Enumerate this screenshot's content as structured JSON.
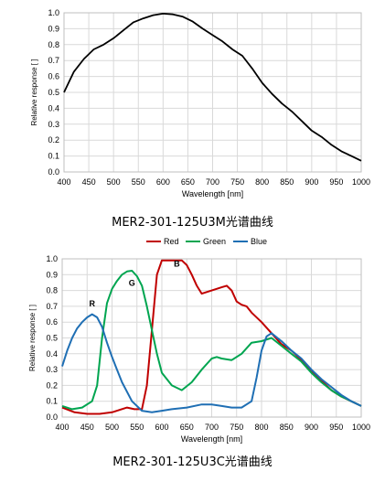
{
  "chart_data": [
    {
      "type": "line",
      "caption": "MER2-301-125U3M光谱曲线",
      "xlabel": "Wavelength [nm]",
      "ylabel": "Relative response [ ]",
      "xlim": [
        400,
        1000
      ],
      "ylim": [
        0,
        1.0
      ],
      "x_ticks": [
        400,
        450,
        500,
        550,
        600,
        650,
        700,
        750,
        800,
        850,
        900,
        950,
        1000
      ],
      "y_ticks": [
        "0.0",
        "0.1",
        "0.2",
        "0.3",
        "0.4",
        "0.5",
        "0.6",
        "0.7",
        "0.8",
        "0.9",
        "1.0"
      ],
      "grid": true,
      "series": [
        {
          "color": "#000000",
          "x": [
            400,
            420,
            440,
            460,
            480,
            500,
            520,
            540,
            560,
            580,
            600,
            620,
            640,
            660,
            680,
            700,
            720,
            740,
            760,
            780,
            800,
            820,
            840,
            860,
            880,
            900,
            920,
            940,
            960,
            980,
            1000
          ],
          "y": [
            0.5,
            0.63,
            0.71,
            0.77,
            0.8,
            0.84,
            0.89,
            0.94,
            0.965,
            0.985,
            0.995,
            0.99,
            0.975,
            0.945,
            0.9,
            0.86,
            0.82,
            0.77,
            0.73,
            0.65,
            0.56,
            0.49,
            0.43,
            0.38,
            0.32,
            0.26,
            0.22,
            0.17,
            0.13,
            0.1,
            0.07
          ]
        }
      ]
    },
    {
      "type": "line",
      "caption": "MER2-301-125U3C光谱曲线",
      "xlabel": "Wavelength [nm]",
      "ylabel": "Relative response [ ]",
      "xlim": [
        400,
        1000
      ],
      "ylim": [
        0,
        1.0
      ],
      "x_ticks": [
        400,
        450,
        500,
        550,
        600,
        650,
        700,
        750,
        800,
        850,
        900,
        950,
        1000
      ],
      "y_ticks": [
        "0.0",
        "0.1",
        "0.2",
        "0.3",
        "0.4",
        "0.5",
        "0.6",
        "0.7",
        "0.8",
        "0.9",
        "1.0"
      ],
      "grid": true,
      "legend_position": "top",
      "series": [
        {
          "name": "Red",
          "color": "#c00000",
          "marker_label": "R",
          "x": [
            400,
            425,
            450,
            475,
            500,
            515,
            530,
            545,
            560,
            570,
            580,
            590,
            600,
            620,
            640,
            650,
            660,
            670,
            680,
            700,
            720,
            730,
            740,
            750,
            760,
            770,
            780,
            800,
            820,
            840,
            860,
            880,
            900,
            920,
            940,
            960,
            980,
            1000
          ],
          "y": [
            0.06,
            0.03,
            0.02,
            0.02,
            0.03,
            0.045,
            0.06,
            0.05,
            0.05,
            0.2,
            0.55,
            0.9,
            0.99,
            0.99,
            0.99,
            0.96,
            0.9,
            0.83,
            0.78,
            0.8,
            0.82,
            0.83,
            0.8,
            0.73,
            0.71,
            0.7,
            0.66,
            0.6,
            0.53,
            0.46,
            0.42,
            0.36,
            0.29,
            0.23,
            0.17,
            0.13,
            0.1,
            0.07
          ]
        },
        {
          "name": "Green",
          "color": "#00a550",
          "marker_label": "G",
          "x": [
            400,
            420,
            440,
            460,
            470,
            480,
            490,
            500,
            510,
            520,
            530,
            540,
            550,
            560,
            570,
            580,
            590,
            600,
            620,
            640,
            660,
            680,
            700,
            710,
            720,
            740,
            760,
            780,
            800,
            820,
            840,
            860,
            880,
            900,
            920,
            940,
            960,
            980,
            1000
          ],
          "y": [
            0.07,
            0.05,
            0.06,
            0.1,
            0.2,
            0.5,
            0.72,
            0.81,
            0.86,
            0.9,
            0.92,
            0.925,
            0.89,
            0.83,
            0.7,
            0.55,
            0.4,
            0.28,
            0.2,
            0.17,
            0.22,
            0.3,
            0.37,
            0.38,
            0.37,
            0.36,
            0.4,
            0.47,
            0.48,
            0.5,
            0.45,
            0.4,
            0.35,
            0.28,
            0.22,
            0.17,
            0.13,
            0.1,
            0.07
          ]
        },
        {
          "name": "Blue",
          "color": "#1f6fb4",
          "marker_label": "B",
          "x": [
            400,
            410,
            420,
            430,
            440,
            450,
            460,
            470,
            480,
            490,
            500,
            510,
            520,
            540,
            560,
            580,
            600,
            620,
            650,
            680,
            700,
            720,
            740,
            760,
            780,
            790,
            800,
            810,
            820,
            840,
            860,
            880,
            900,
            920,
            940,
            960,
            980,
            1000
          ],
          "y": [
            0.32,
            0.42,
            0.5,
            0.56,
            0.6,
            0.63,
            0.65,
            0.63,
            0.57,
            0.47,
            0.38,
            0.3,
            0.22,
            0.1,
            0.04,
            0.03,
            0.04,
            0.05,
            0.06,
            0.08,
            0.08,
            0.07,
            0.06,
            0.06,
            0.1,
            0.25,
            0.42,
            0.51,
            0.53,
            0.48,
            0.42,
            0.37,
            0.3,
            0.24,
            0.19,
            0.14,
            0.1,
            0.07
          ]
        }
      ]
    }
  ]
}
